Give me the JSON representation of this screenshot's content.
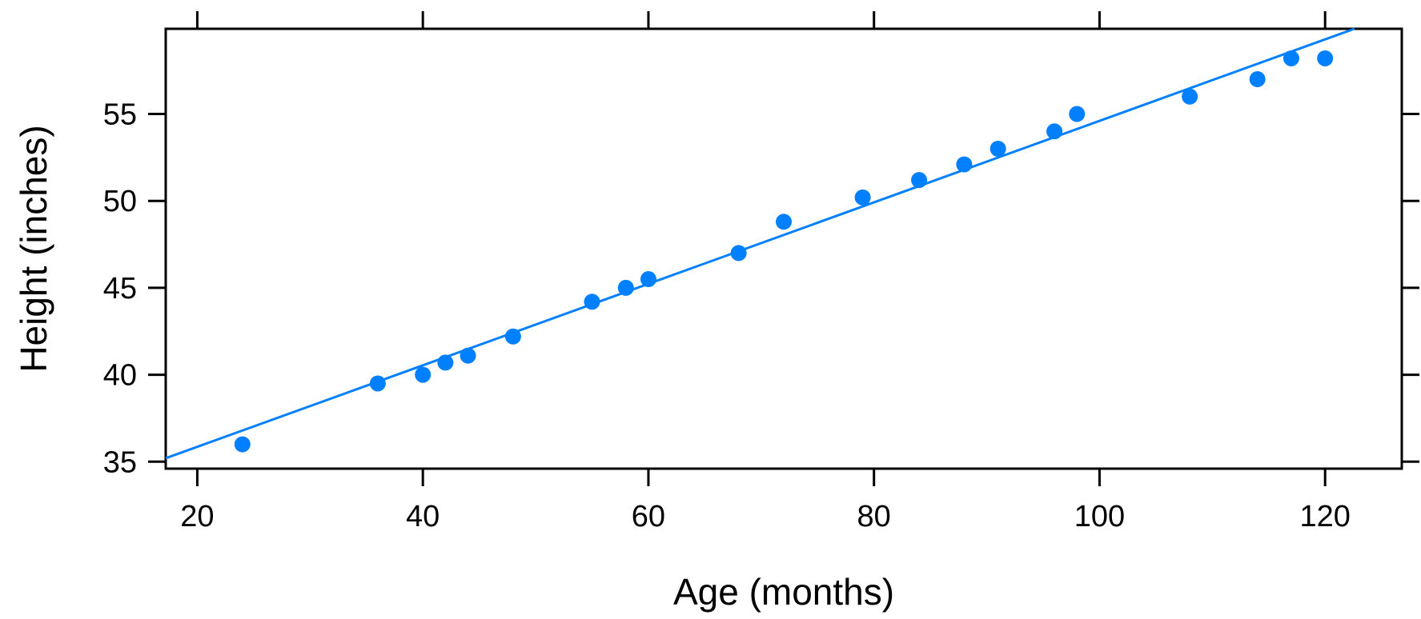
{
  "chart_data": {
    "type": "scatter",
    "title": "",
    "xlabel": "Age (months)",
    "ylabel": "Height (inches)",
    "xlim": [
      17.2,
      126.8
    ],
    "ylim": [
      34.6,
      59.9
    ],
    "x_ticks": [
      20,
      40,
      60,
      80,
      100,
      120
    ],
    "y_ticks": [
      35,
      40,
      45,
      50,
      55
    ],
    "grid": false,
    "legend": "none",
    "point_color": "#0080ff",
    "line_color": "#0080ff",
    "series": [
      {
        "x": [
          24,
          36,
          40,
          42,
          44,
          48,
          55,
          58,
          60,
          68,
          72,
          79,
          84,
          88,
          91,
          96,
          98,
          108,
          114,
          117,
          120
        ],
        "y": [
          36.0,
          39.5,
          40.0,
          40.7,
          41.1,
          42.2,
          44.2,
          45.0,
          45.5,
          47.0,
          48.8,
          50.2,
          51.2,
          52.1,
          53.0,
          54.0,
          55.0,
          56.0,
          57.0,
          58.2,
          58.2
        ]
      }
    ],
    "fit_line": {
      "x": [
        17.2,
        122.6
      ],
      "y": [
        35.2,
        59.9
      ]
    }
  }
}
